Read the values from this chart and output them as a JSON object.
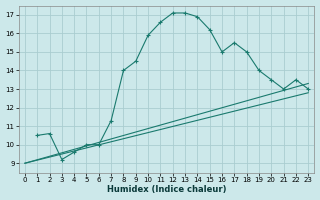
{
  "xlabel": "Humidex (Indice chaleur)",
  "background_color": "#cce8ea",
  "grid_color": "#aacdd0",
  "line_color": "#1a7a6e",
  "xlim": [
    -0.5,
    23.5
  ],
  "ylim": [
    8.5,
    17.5
  ],
  "xticks": [
    0,
    1,
    2,
    3,
    4,
    5,
    6,
    7,
    8,
    9,
    10,
    11,
    12,
    13,
    14,
    15,
    16,
    17,
    18,
    19,
    20,
    21,
    22,
    23
  ],
  "yticks": [
    9,
    10,
    11,
    12,
    13,
    14,
    15,
    16,
    17
  ],
  "line1_x": [
    1,
    2,
    3,
    4,
    5,
    6,
    7,
    8,
    9,
    10,
    11,
    12,
    13,
    14,
    15,
    16,
    17,
    18,
    19,
    20,
    21,
    22,
    23
  ],
  "line1_y": [
    10.5,
    10.6,
    9.2,
    9.6,
    10.0,
    10.0,
    11.3,
    14.0,
    14.5,
    15.9,
    16.6,
    17.1,
    17.1,
    16.9,
    16.2,
    15.0,
    15.5,
    15.0,
    14.0,
    13.5,
    13.0,
    13.5,
    13.0
  ],
  "line2_x": [
    0,
    23
  ],
  "line2_y": [
    9.0,
    13.3
  ],
  "line3_x": [
    0,
    23
  ],
  "line3_y": [
    9.0,
    12.8
  ]
}
